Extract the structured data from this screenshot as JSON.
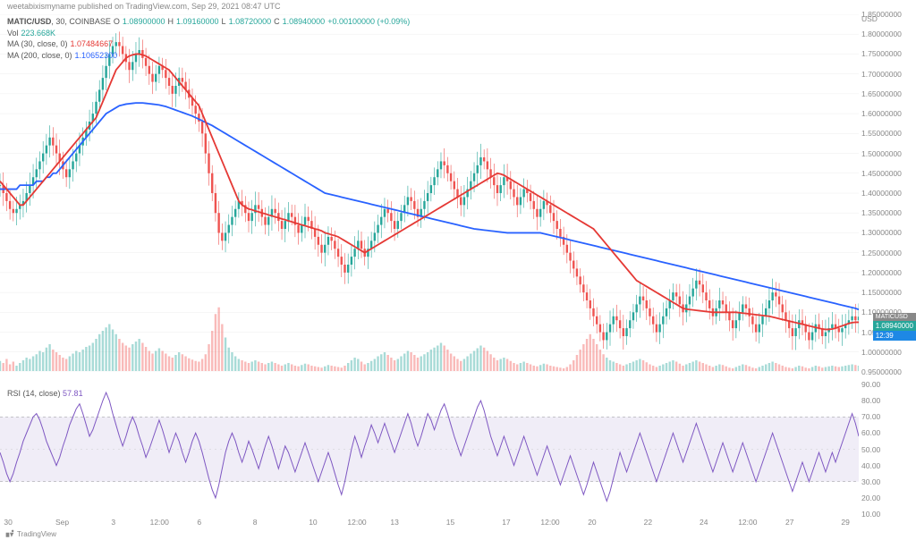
{
  "header": {
    "publisher": "weetabixismyname",
    "published_on": "published on TradingView.com,",
    "date": "Sep 29, 2021 08:47 UTC"
  },
  "legend": {
    "symbol": "MATIC/USD",
    "interval": "30",
    "exchange": "COINBASE",
    "o_label": "O",
    "o_val": "1.08900000",
    "h_label": "H",
    "h_val": "1.09160000",
    "l_label": "L",
    "l_val": "1.08720000",
    "c_label": "C",
    "c_val": "1.08940000",
    "change": "+0.00100000 (+0.09%)",
    "vol_label": "Vol",
    "vol_val": "223.668K",
    "ma1_label": "MA (30, close, 0)",
    "ma1_val": "1.07484667",
    "ma2_label": "MA (200, close, 0)",
    "ma2_val": "1.10652300"
  },
  "rsi_legend": {
    "label": "RSI (14, close)",
    "val": "57.81"
  },
  "price_axis": {
    "usd": "USD",
    "min": 0.95,
    "max": 1.85,
    "ticks": [
      "1.85000000",
      "1.80000000",
      "1.75000000",
      "1.70000000",
      "1.65000000",
      "1.60000000",
      "1.55000000",
      "1.50000000",
      "1.45000000",
      "1.40000000",
      "1.35000000",
      "1.30000000",
      "1.25000000",
      "1.20000000",
      "1.15000000",
      "1.10000000",
      "1.05000000",
      "1.00000000",
      "0.95000000"
    ]
  },
  "rsi_axis": {
    "min": 10,
    "max": 90,
    "ticks": [
      "90.00",
      "80.00",
      "70.00",
      "60.00",
      "50.00",
      "40.00",
      "30.00",
      "20.00",
      "10.00"
    ]
  },
  "x_axis": {
    "ticks": [
      {
        "label": "30",
        "pos": 0.015
      },
      {
        "label": "Sep",
        "pos": 0.075
      },
      {
        "label": "3",
        "pos": 0.14
      },
      {
        "label": "12:00",
        "pos": 0.185
      },
      {
        "label": "6",
        "pos": 0.24
      },
      {
        "label": "8",
        "pos": 0.305
      },
      {
        "label": "10",
        "pos": 0.37
      },
      {
        "label": "12:00",
        "pos": 0.415
      },
      {
        "label": "13",
        "pos": 0.465
      },
      {
        "label": "15",
        "pos": 0.53
      },
      {
        "label": "17",
        "pos": 0.595
      },
      {
        "label": "12:00",
        "pos": 0.64
      },
      {
        "label": "20",
        "pos": 0.695
      },
      {
        "label": "22",
        "pos": 0.76
      },
      {
        "label": "24",
        "pos": 0.825
      },
      {
        "label": "12:00",
        "pos": 0.87
      },
      {
        "label": "27",
        "pos": 0.925
      },
      {
        "label": "29",
        "pos": 0.99
      }
    ]
  },
  "badge": {
    "symbol": "MATICUSD",
    "price": "1.08940000",
    "countdown": "12:39"
  },
  "footer": {
    "logo": "TradingView"
  },
  "colors": {
    "up": "#26a69a",
    "down": "#ef5350",
    "ma30": "#e53935",
    "ma200": "#2962ff",
    "rsi": "#7e57c2",
    "rsi_band": "#f0edf7",
    "grid": "#eeeeee",
    "axis_text": "#888888"
  },
  "main_chart": {
    "type": "candlestick",
    "ylim": [
      0.95,
      1.85
    ],
    "n": 260,
    "ma200": [
      1.41,
      1.41,
      1.41,
      1.41,
      1.41,
      1.41,
      1.42,
      1.42,
      1.42,
      1.42,
      1.42,
      1.43,
      1.43,
      1.43,
      1.44,
      1.44,
      1.45,
      1.45,
      1.46,
      1.47,
      1.48,
      1.49,
      1.5,
      1.51,
      1.52,
      1.53,
      1.54,
      1.55,
      1.56,
      1.57,
      1.58,
      1.59,
      1.6,
      1.605,
      1.61,
      1.615,
      1.62,
      1.622,
      1.624,
      1.625,
      1.626,
      1.627,
      1.627,
      1.627,
      1.626,
      1.625,
      1.624,
      1.623,
      1.622,
      1.62,
      1.618,
      1.615,
      1.612,
      1.609,
      1.606,
      1.603,
      1.6,
      1.597,
      1.594,
      1.59,
      1.586,
      1.582,
      1.578,
      1.574,
      1.57,
      1.565,
      1.56,
      1.555,
      1.55,
      1.545,
      1.54,
      1.535,
      1.53,
      1.525,
      1.52,
      1.515,
      1.51,
      1.505,
      1.5,
      1.495,
      1.49,
      1.485,
      1.48,
      1.475,
      1.47,
      1.465,
      1.46,
      1.455,
      1.45,
      1.445,
      1.44,
      1.435,
      1.43,
      1.425,
      1.42,
      1.415,
      1.41,
      1.405,
      1.4,
      1.398,
      1.396,
      1.394,
      1.392,
      1.39,
      1.388,
      1.386,
      1.384,
      1.382,
      1.38,
      1.378,
      1.376,
      1.374,
      1.372,
      1.37,
      1.368,
      1.366,
      1.364,
      1.362,
      1.36,
      1.358,
      1.356,
      1.354,
      1.352,
      1.35,
      1.348,
      1.346,
      1.344,
      1.342,
      1.34,
      1.338,
      1.336,
      1.334,
      1.332,
      1.33,
      1.328,
      1.326,
      1.324,
      1.322,
      1.32,
      1.318,
      1.316,
      1.314,
      1.312,
      1.31,
      1.309,
      1.308,
      1.307,
      1.306,
      1.305,
      1.304,
      1.303,
      1.302,
      1.301,
      1.3,
      1.3,
      1.3,
      1.3,
      1.3,
      1.3,
      1.3,
      1.3,
      1.3,
      1.3,
      1.3,
      1.298,
      1.296,
      1.294,
      1.292,
      1.29,
      1.288,
      1.286,
      1.284,
      1.282,
      1.28,
      1.278,
      1.276,
      1.274,
      1.272,
      1.27,
      1.268,
      1.266,
      1.264,
      1.262,
      1.26,
      1.258,
      1.256,
      1.254,
      1.252,
      1.25,
      1.248,
      1.246,
      1.244,
      1.242,
      1.24,
      1.238,
      1.236,
      1.234,
      1.232,
      1.23,
      1.228,
      1.226,
      1.224,
      1.222,
      1.22,
      1.218,
      1.216,
      1.214,
      1.212,
      1.21,
      1.208,
      1.206,
      1.204,
      1.202,
      1.2,
      1.198,
      1.196,
      1.194,
      1.192,
      1.19,
      1.188,
      1.186,
      1.184,
      1.182,
      1.18,
      1.178,
      1.176,
      1.174,
      1.172,
      1.17,
      1.168,
      1.166,
      1.164,
      1.162,
      1.16,
      1.158,
      1.156,
      1.154,
      1.152,
      1.15,
      1.148,
      1.146,
      1.144,
      1.142,
      1.14,
      1.138,
      1.136,
      1.134,
      1.132,
      1.13,
      1.128,
      1.126,
      1.124,
      1.122,
      1.12,
      1.118,
      1.116,
      1.114,
      1.112,
      1.11,
      1.107
    ],
    "ma30": [
      1.43,
      1.42,
      1.41,
      1.4,
      1.39,
      1.38,
      1.37,
      1.37,
      1.38,
      1.39,
      1.4,
      1.41,
      1.42,
      1.43,
      1.44,
      1.45,
      1.46,
      1.47,
      1.48,
      1.49,
      1.5,
      1.51,
      1.52,
      1.53,
      1.54,
      1.55,
      1.56,
      1.57,
      1.58,
      1.59,
      1.61,
      1.63,
      1.65,
      1.67,
      1.69,
      1.71,
      1.72,
      1.73,
      1.74,
      1.745,
      1.748,
      1.75,
      1.75,
      1.748,
      1.745,
      1.74,
      1.735,
      1.73,
      1.725,
      1.72,
      1.715,
      1.71,
      1.7,
      1.69,
      1.68,
      1.67,
      1.66,
      1.65,
      1.64,
      1.63,
      1.62,
      1.6,
      1.58,
      1.56,
      1.54,
      1.52,
      1.5,
      1.48,
      1.46,
      1.44,
      1.42,
      1.4,
      1.38,
      1.37,
      1.365,
      1.36,
      1.358,
      1.355,
      1.353,
      1.35,
      1.348,
      1.345,
      1.343,
      1.34,
      1.338,
      1.335,
      1.333,
      1.33,
      1.328,
      1.325,
      1.323,
      1.32,
      1.318,
      1.315,
      1.313,
      1.31,
      1.308,
      1.305,
      1.3,
      1.298,
      1.295,
      1.293,
      1.29,
      1.285,
      1.28,
      1.275,
      1.27,
      1.265,
      1.26,
      1.255,
      1.25,
      1.255,
      1.26,
      1.265,
      1.27,
      1.275,
      1.28,
      1.285,
      1.29,
      1.295,
      1.3,
      1.305,
      1.31,
      1.315,
      1.32,
      1.325,
      1.33,
      1.335,
      1.34,
      1.345,
      1.35,
      1.355,
      1.36,
      1.365,
      1.37,
      1.375,
      1.38,
      1.385,
      1.39,
      1.395,
      1.4,
      1.405,
      1.41,
      1.415,
      1.42,
      1.425,
      1.43,
      1.435,
      1.44,
      1.445,
      1.45,
      1.448,
      1.445,
      1.44,
      1.435,
      1.43,
      1.425,
      1.42,
      1.415,
      1.41,
      1.405,
      1.4,
      1.395,
      1.39,
      1.385,
      1.38,
      1.375,
      1.37,
      1.365,
      1.36,
      1.355,
      1.35,
      1.345,
      1.34,
      1.335,
      1.33,
      1.325,
      1.32,
      1.315,
      1.31,
      1.3,
      1.29,
      1.28,
      1.27,
      1.26,
      1.25,
      1.24,
      1.23,
      1.22,
      1.21,
      1.2,
      1.19,
      1.18,
      1.175,
      1.17,
      1.165,
      1.16,
      1.155,
      1.15,
      1.145,
      1.14,
      1.135,
      1.13,
      1.125,
      1.12,
      1.115,
      1.11,
      1.108,
      1.107,
      1.106,
      1.105,
      1.104,
      1.103,
      1.102,
      1.101,
      1.1,
      1.1,
      1.1,
      1.1,
      1.1,
      1.1,
      1.1,
      1.1,
      1.099,
      1.098,
      1.097,
      1.096,
      1.095,
      1.094,
      1.093,
      1.092,
      1.091,
      1.09,
      1.088,
      1.086,
      1.084,
      1.082,
      1.08,
      1.078,
      1.076,
      1.074,
      1.072,
      1.07,
      1.068,
      1.066,
      1.064,
      1.062,
      1.06,
      1.058,
      1.057,
      1.057,
      1.058,
      1.06,
      1.063,
      1.066,
      1.069,
      1.072,
      1.074,
      1.075,
      1.075
    ],
    "candles_base": [
      1.42,
      1.4,
      1.38,
      1.36,
      1.35,
      1.36,
      1.37,
      1.38,
      1.4,
      1.42,
      1.44,
      1.46,
      1.48,
      1.5,
      1.52,
      1.54,
      1.52,
      1.5,
      1.48,
      1.46,
      1.44,
      1.46,
      1.48,
      1.5,
      1.52,
      1.54,
      1.56,
      1.58,
      1.6,
      1.63,
      1.66,
      1.69,
      1.72,
      1.75,
      1.77,
      1.78,
      1.77,
      1.75,
      1.73,
      1.71,
      1.73,
      1.75,
      1.76,
      1.74,
      1.72,
      1.7,
      1.68,
      1.7,
      1.72,
      1.71,
      1.69,
      1.67,
      1.65,
      1.67,
      1.69,
      1.68,
      1.66,
      1.64,
      1.62,
      1.6,
      1.58,
      1.55,
      1.5,
      1.45,
      1.4,
      1.35,
      1.3,
      1.28,
      1.3,
      1.32,
      1.34,
      1.36,
      1.38,
      1.37,
      1.35,
      1.33,
      1.35,
      1.37,
      1.36,
      1.34,
      1.32,
      1.34,
      1.36,
      1.35,
      1.33,
      1.31,
      1.33,
      1.35,
      1.34,
      1.32,
      1.3,
      1.32,
      1.34,
      1.33,
      1.31,
      1.29,
      1.27,
      1.25,
      1.27,
      1.29,
      1.28,
      1.26,
      1.24,
      1.22,
      1.2,
      1.22,
      1.24,
      1.26,
      1.28,
      1.26,
      1.24,
      1.26,
      1.28,
      1.3,
      1.32,
      1.34,
      1.36,
      1.35,
      1.33,
      1.31,
      1.33,
      1.35,
      1.37,
      1.39,
      1.38,
      1.36,
      1.34,
      1.36,
      1.38,
      1.4,
      1.42,
      1.44,
      1.46,
      1.48,
      1.47,
      1.45,
      1.43,
      1.41,
      1.39,
      1.37,
      1.39,
      1.41,
      1.43,
      1.45,
      1.47,
      1.49,
      1.48,
      1.46,
      1.44,
      1.42,
      1.4,
      1.42,
      1.44,
      1.43,
      1.41,
      1.39,
      1.37,
      1.39,
      1.41,
      1.4,
      1.38,
      1.36,
      1.34,
      1.36,
      1.38,
      1.37,
      1.35,
      1.33,
      1.31,
      1.29,
      1.27,
      1.25,
      1.23,
      1.21,
      1.19,
      1.17,
      1.15,
      1.13,
      1.11,
      1.09,
      1.07,
      1.05,
      1.03,
      1.05,
      1.07,
      1.09,
      1.08,
      1.06,
      1.04,
      1.06,
      1.08,
      1.1,
      1.12,
      1.14,
      1.13,
      1.11,
      1.09,
      1.07,
      1.05,
      1.07,
      1.09,
      1.11,
      1.13,
      1.15,
      1.14,
      1.12,
      1.1,
      1.12,
      1.14,
      1.16,
      1.18,
      1.17,
      1.15,
      1.13,
      1.11,
      1.09,
      1.11,
      1.13,
      1.12,
      1.1,
      1.08,
      1.06,
      1.08,
      1.1,
      1.12,
      1.11,
      1.09,
      1.07,
      1.05,
      1.07,
      1.09,
      1.11,
      1.13,
      1.15,
      1.14,
      1.12,
      1.1,
      1.08,
      1.06,
      1.04,
      1.06,
      1.08,
      1.07,
      1.05,
      1.03,
      1.05,
      1.07,
      1.06,
      1.04,
      1.05,
      1.06,
      1.07,
      1.06,
      1.05,
      1.06,
      1.07,
      1.08,
      1.09,
      1.08,
      1.089
    ]
  },
  "rsi_chart": {
    "type": "line",
    "ylim": [
      10,
      90
    ],
    "band_low": 30,
    "band_high": 70,
    "n": 260,
    "values": [
      48,
      42,
      35,
      30,
      35,
      42,
      48,
      55,
      60,
      65,
      70,
      72,
      68,
      62,
      55,
      50,
      45,
      40,
      45,
      52,
      58,
      65,
      70,
      75,
      78,
      72,
      65,
      58,
      62,
      68,
      74,
      80,
      85,
      80,
      72,
      65,
      58,
      52,
      58,
      65,
      70,
      65,
      58,
      52,
      45,
      50,
      56,
      62,
      68,
      62,
      55,
      48,
      54,
      60,
      55,
      48,
      42,
      48,
      55,
      60,
      55,
      48,
      40,
      32,
      25,
      20,
      28,
      38,
      48,
      55,
      60,
      55,
      48,
      42,
      48,
      55,
      50,
      44,
      38,
      45,
      52,
      58,
      52,
      45,
      38,
      45,
      52,
      48,
      42,
      36,
      42,
      48,
      54,
      48,
      42,
      36,
      30,
      36,
      42,
      48,
      42,
      35,
      28,
      22,
      30,
      40,
      50,
      58,
      52,
      45,
      52,
      58,
      65,
      60,
      54,
      60,
      66,
      60,
      54,
      48,
      54,
      60,
      66,
      72,
      66,
      58,
      52,
      58,
      65,
      72,
      68,
      62,
      68,
      74,
      78,
      72,
      65,
      58,
      52,
      46,
      52,
      58,
      64,
      70,
      76,
      80,
      74,
      66,
      58,
      52,
      46,
      52,
      58,
      52,
      46,
      40,
      46,
      52,
      58,
      52,
      46,
      40,
      34,
      40,
      46,
      52,
      46,
      40,
      34,
      28,
      34,
      40,
      46,
      40,
      34,
      28,
      22,
      28,
      35,
      42,
      36,
      30,
      24,
      18,
      24,
      32,
      40,
      48,
      42,
      36,
      42,
      48,
      54,
      60,
      54,
      48,
      42,
      36,
      30,
      36,
      42,
      48,
      54,
      60,
      54,
      48,
      42,
      48,
      54,
      60,
      66,
      60,
      54,
      48,
      42,
      36,
      42,
      48,
      54,
      48,
      42,
      36,
      42,
      48,
      54,
      48,
      42,
      36,
      30,
      36,
      42,
      48,
      54,
      60,
      54,
      48,
      42,
      36,
      30,
      24,
      30,
      36,
      42,
      36,
      30,
      36,
      42,
      48,
      42,
      36,
      42,
      48,
      42,
      48,
      54,
      60,
      66,
      72,
      66,
      58
    ]
  },
  "volume": {
    "max": 1.0,
    "bars": [
      0.15,
      0.12,
      0.18,
      0.1,
      0.14,
      0.08,
      0.12,
      0.16,
      0.2,
      0.18,
      0.22,
      0.25,
      0.3,
      0.28,
      0.35,
      0.4,
      0.32,
      0.28,
      0.24,
      0.2,
      0.18,
      0.22,
      0.26,
      0.3,
      0.28,
      0.32,
      0.36,
      0.38,
      0.42,
      0.48,
      0.55,
      0.6,
      0.65,
      0.7,
      0.62,
      0.55,
      0.48,
      0.42,
      0.38,
      0.35,
      0.4,
      0.44,
      0.48,
      0.42,
      0.36,
      0.3,
      0.26,
      0.3,
      0.34,
      0.3,
      0.26,
      0.22,
      0.2,
      0.24,
      0.28,
      0.25,
      0.22,
      0.19,
      0.17,
      0.15,
      0.14,
      0.18,
      0.25,
      0.4,
      0.6,
      0.85,
      0.95,
      0.7,
      0.5,
      0.35,
      0.28,
      0.22,
      0.18,
      0.16,
      0.14,
      0.12,
      0.14,
      0.16,
      0.14,
      0.12,
      0.1,
      0.12,
      0.14,
      0.12,
      0.1,
      0.08,
      0.1,
      0.12,
      0.1,
      0.08,
      0.07,
      0.09,
      0.11,
      0.1,
      0.08,
      0.07,
      0.06,
      0.05,
      0.07,
      0.09,
      0.08,
      0.07,
      0.06,
      0.05,
      0.08,
      0.12,
      0.16,
      0.2,
      0.18,
      0.14,
      0.1,
      0.12,
      0.15,
      0.18,
      0.22,
      0.25,
      0.28,
      0.24,
      0.2,
      0.16,
      0.18,
      0.22,
      0.26,
      0.3,
      0.28,
      0.24,
      0.2,
      0.22,
      0.25,
      0.28,
      0.32,
      0.35,
      0.38,
      0.42,
      0.38,
      0.32,
      0.26,
      0.22,
      0.18,
      0.15,
      0.18,
      0.22,
      0.26,
      0.3,
      0.34,
      0.38,
      0.35,
      0.3,
      0.25,
      0.2,
      0.16,
      0.18,
      0.2,
      0.18,
      0.15,
      0.12,
      0.1,
      0.12,
      0.14,
      0.12,
      0.1,
      0.08,
      0.07,
      0.09,
      0.11,
      0.1,
      0.08,
      0.07,
      0.06,
      0.05,
      0.04,
      0.06,
      0.1,
      0.16,
      0.24,
      0.32,
      0.4,
      0.48,
      0.55,
      0.48,
      0.4,
      0.32,
      0.25,
      0.2,
      0.16,
      0.14,
      0.12,
      0.1,
      0.08,
      0.1,
      0.12,
      0.14,
      0.16,
      0.18,
      0.16,
      0.13,
      0.1,
      0.08,
      0.06,
      0.08,
      0.1,
      0.12,
      0.14,
      0.16,
      0.14,
      0.11,
      0.08,
      0.1,
      0.12,
      0.14,
      0.16,
      0.14,
      0.12,
      0.1,
      0.08,
      0.06,
      0.08,
      0.1,
      0.09,
      0.07,
      0.05,
      0.04,
      0.06,
      0.08,
      0.1,
      0.09,
      0.07,
      0.05,
      0.04,
      0.06,
      0.08,
      0.1,
      0.12,
      0.14,
      0.12,
      0.1,
      0.08,
      0.06,
      0.05,
      0.04,
      0.06,
      0.08,
      0.07,
      0.05,
      0.04,
      0.06,
      0.08,
      0.07,
      0.05,
      0.06,
      0.07,
      0.08,
      0.07,
      0.06,
      0.07,
      0.08,
      0.09,
      0.1,
      0.09,
      0.08
    ]
  }
}
